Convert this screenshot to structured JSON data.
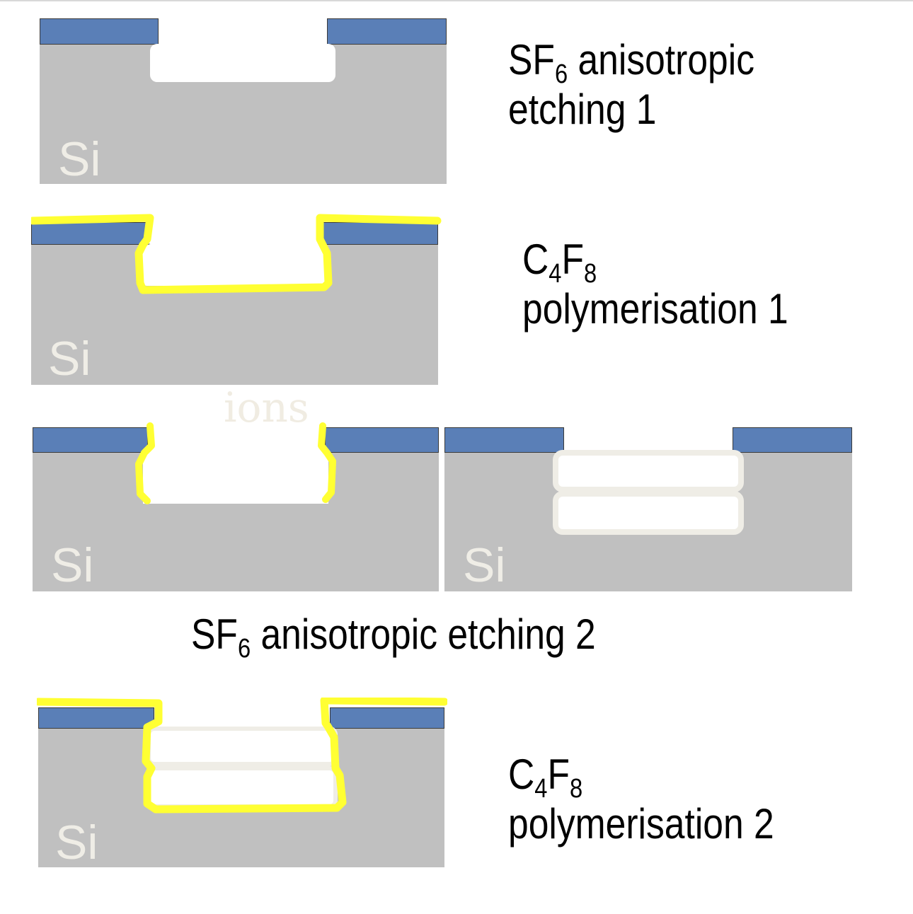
{
  "material_label": "Si",
  "ions_label": "ions",
  "colors": {
    "silicon": "#c0c0c0",
    "mask": "#5a7fb7",
    "mask_border": "#3a3a3a",
    "polymer": "#ffff33",
    "cavity": "#ffffff",
    "cavity_rim": "#efede6",
    "si_text": "#efede6"
  },
  "steps": [
    {
      "main": "SF",
      "sub": "6",
      "rest": " anisotropic",
      "line2": "etching 1"
    },
    {
      "main": "C",
      "sub": "4",
      "mid": "F",
      "sub2": "8",
      "line2": "polymerisation 1"
    },
    {
      "main": "SF",
      "sub": "6",
      "rest": " anisotropic etching 2"
    },
    {
      "main": "C",
      "sub": "4",
      "mid": "F",
      "sub2": "8",
      "line2": "polymerisation 2"
    }
  ]
}
